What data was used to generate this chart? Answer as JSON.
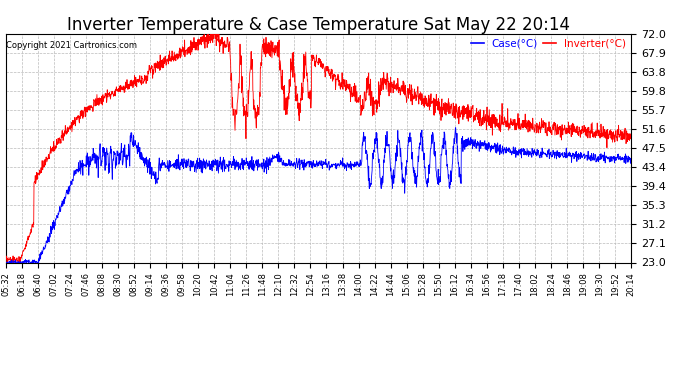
{
  "title": "Inverter Temperature & Case Temperature Sat May 22 20:14",
  "copyright": "Copyright 2021 Cartronics.com",
  "legend_labels": [
    "Case(°C)",
    "Inverter(°C)"
  ],
  "legend_colors": [
    "blue",
    "red"
  ],
  "y_ticks": [
    23.0,
    27.1,
    31.2,
    35.3,
    39.4,
    43.4,
    47.5,
    51.6,
    55.7,
    59.8,
    63.8,
    67.9,
    72.0
  ],
  "ylim": [
    23.0,
    72.0
  ],
  "background_color": "#ffffff",
  "plot_bg_color": "#ffffff",
  "grid_color": "#bbbbbb",
  "title_fontsize": 12,
  "x_labels": [
    "05:32",
    "06:18",
    "06:40",
    "07:02",
    "07:24",
    "07:46",
    "08:08",
    "08:30",
    "08:52",
    "09:14",
    "09:36",
    "09:58",
    "10:20",
    "10:42",
    "11:04",
    "11:26",
    "11:48",
    "12:10",
    "12:32",
    "12:54",
    "13:16",
    "13:38",
    "14:00",
    "14:22",
    "14:44",
    "15:06",
    "15:28",
    "15:50",
    "16:12",
    "16:34",
    "16:56",
    "17:18",
    "17:40",
    "18:02",
    "18:24",
    "18:46",
    "19:08",
    "19:30",
    "19:52",
    "20:14"
  ]
}
